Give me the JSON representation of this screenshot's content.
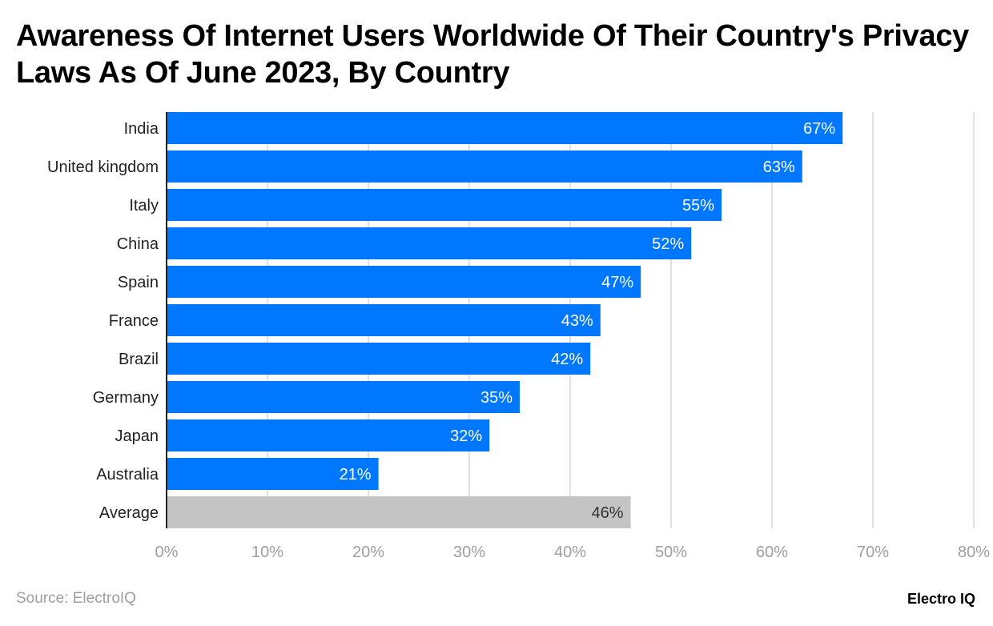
{
  "chart_data": {
    "type": "bar",
    "orientation": "horizontal",
    "title": "Awareness Of Internet Users Worldwide Of Their Country's Privacy Laws As Of June 2023, By Country",
    "categories": [
      "India",
      "United kingdom",
      "Italy",
      "China",
      "Spain",
      "France",
      "Brazil",
      "Germany",
      "Japan",
      "Australia",
      "Average"
    ],
    "values": [
      67,
      63,
      55,
      52,
      47,
      43,
      42,
      35,
      32,
      21,
      46
    ],
    "data_labels": [
      "67%",
      "63%",
      "55%",
      "52%",
      "47%",
      "43%",
      "42%",
      "35%",
      "32%",
      "21%",
      "46%"
    ],
    "xlim": [
      0,
      80
    ],
    "xticks": [
      0,
      10,
      20,
      30,
      40,
      50,
      60,
      70,
      80
    ],
    "xtick_labels": [
      "0%",
      "10%",
      "20%",
      "30%",
      "40%",
      "50%",
      "60%",
      "70%",
      "80%"
    ],
    "xlabel": "",
    "ylabel": "",
    "grid": "vertical",
    "colors": {
      "bar": "#0077ff",
      "average": "#c4c4c4",
      "grid": "#e0e0e0",
      "tick": "#9e9e9e"
    }
  },
  "source": "Source: ElectroIQ",
  "logo": "Electro IQ"
}
